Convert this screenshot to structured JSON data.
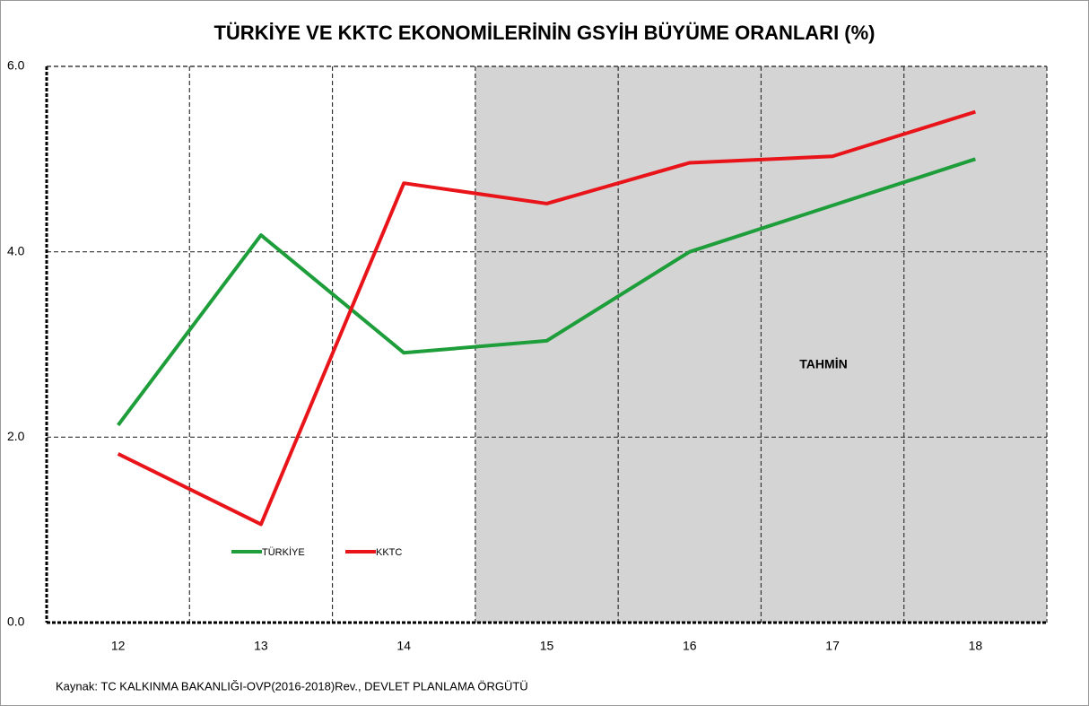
{
  "chart_data": {
    "type": "line",
    "title": "TÜRKİYE VE KKTC EKONOMİLERİNİN GSYİH BÜYÜME ORANLARI (%)",
    "categories": [
      "12",
      "13",
      "14",
      "15",
      "16",
      "17",
      "18"
    ],
    "series": [
      {
        "name": "TÜRKİYE",
        "color": "#1e9e3a",
        "values": [
          2.13,
          4.18,
          2.91,
          3.04,
          4.0,
          4.5,
          5.0
        ]
      },
      {
        "name": "KKTC",
        "color": "#e8141a",
        "values": [
          1.82,
          1.06,
          4.74,
          4.52,
          4.96,
          5.03,
          5.51
        ]
      }
    ],
    "ylim": [
      0,
      6
    ],
    "yticks": [
      {
        "value": 0,
        "label": "0.0"
      },
      {
        "value": 2,
        "label": "2.0"
      },
      {
        "value": 4,
        "label": "4.0"
      },
      {
        "value": 6,
        "label": "6.0"
      }
    ],
    "grid": true,
    "annotation": "TAHMİN",
    "source": "Kaynak: TC KALKINMA BAKANLIĞI-OVP(2016-2018)Rev., DEVLET PLANLAMA ÖRGÜTÜ"
  }
}
